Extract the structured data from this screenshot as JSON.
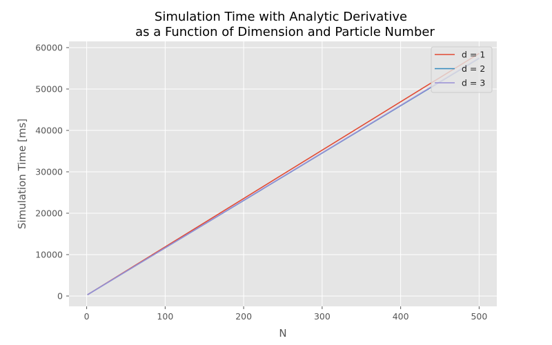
{
  "chart_data": {
    "type": "line",
    "title": [
      "Simulation Time with Analytic Derivative",
      "as a Function of Dimension and Particle Number"
    ],
    "xlabel": "N",
    "ylabel": "Simulation Time [ms]",
    "xlim": [
      -22.5,
      522.5
    ],
    "ylim": [
      -2500,
      61500
    ],
    "xticks": [
      0,
      100,
      200,
      300,
      400,
      500
    ],
    "yticks": [
      0,
      10000,
      20000,
      30000,
      40000,
      50000,
      60000
    ],
    "grid": true,
    "legend_position": "top-right",
    "x": [
      1,
      500
    ],
    "series": [
      {
        "name": "d = 1",
        "color": "#E24A33",
        "values": [
          300,
          58600
        ]
      },
      {
        "name": "d = 2",
        "color": "#348ABD",
        "values": [
          300,
          57400
        ]
      },
      {
        "name": "d = 3",
        "color": "#988ED5",
        "values": [
          300,
          57500
        ]
      }
    ]
  },
  "colors": {
    "plot_background": "#E5E5E5",
    "grid": "#FFFFFF",
    "tick": "#555555"
  }
}
